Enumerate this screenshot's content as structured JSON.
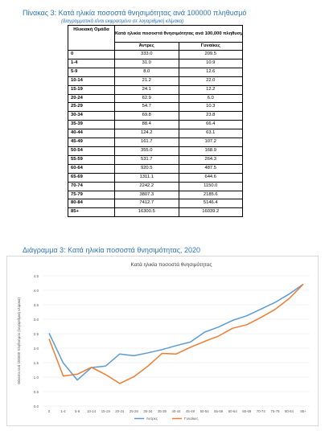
{
  "table": {
    "title": "Πίνακας 3: Κατά ηλικία ποσοστά θνησιμότητας ανά 100000 πληθυσμό",
    "note": "(διαγραμματικά είναι εκφρασμένο σε λογαριθμική κλίμακα)",
    "header_age": "Ηλικιακή Ομάδα",
    "header_group": "Κατά ηλικία ποσοστά θνησιμότητας ανά 100,000 πληθυσμό",
    "header_male": "Άντρες",
    "header_female": "Γυναίκες",
    "rows": [
      {
        "age": "0",
        "male": "333.0",
        "female": "209.5"
      },
      {
        "age": "1-4",
        "male": "31.0",
        "female": "10.9"
      },
      {
        "age": "5-9",
        "male": "8.0",
        "female": "12.6"
      },
      {
        "age": "10-14",
        "male": "21.2",
        "female": "22.0"
      },
      {
        "age": "15-19",
        "male": "24.1",
        "female": "12.2"
      },
      {
        "age": "20-24",
        "male": "62.9",
        "female": "6.0"
      },
      {
        "age": "25-29",
        "male": "54.7",
        "female": "10.3"
      },
      {
        "age": "30-34",
        "male": "69.8",
        "female": "23.8"
      },
      {
        "age": "35-39",
        "male": "88.4",
        "female": "66.4"
      },
      {
        "age": "40-44",
        "male": "124.2",
        "female": "63.1"
      },
      {
        "age": "45-49",
        "male": "161.7",
        "female": "107.2"
      },
      {
        "age": "50-54",
        "male": "355.0",
        "female": "168.9"
      },
      {
        "age": "55-59",
        "male": "531.7",
        "female": "264.3"
      },
      {
        "age": "60-64",
        "male": "920.5",
        "female": "487.5"
      },
      {
        "age": "65-69",
        "male": "1311.1",
        "female": "644.6"
      },
      {
        "age": "70-74",
        "male": "2242.2",
        "female": "1150.0"
      },
      {
        "age": "75-79",
        "male": "3807.3",
        "female": "2185.6"
      },
      {
        "age": "80-84",
        "male": "7412.7",
        "female": "5146.4"
      },
      {
        "age": "85+",
        "male": "16300.5",
        "female": "16039.2"
      }
    ]
  },
  "chart_section": {
    "heading": "Διάγραμμα 3: Κατά ηλικία ποσοστά θνησιμότητας, 2020"
  },
  "chart_data": {
    "type": "line",
    "title": "Κατά ηλικία ποσοστά θνησιμότητας",
    "ylabel": "Θάνατοι ανά 100000 πληθυσμού (λογαριθμική κλίμακα)",
    "xlabel": "",
    "ylim": [
      0,
      4.5
    ],
    "yticks": [
      "0.0",
      "0.5",
      "1.0",
      "1.5",
      "2.0",
      "2.5",
      "3.0",
      "3.5",
      "4.0",
      "4.5"
    ],
    "categories": [
      "0",
      "1-4",
      "5-9",
      "10-14",
      "15-19",
      "20-24",
      "25-29",
      "30-34",
      "35-39",
      "40-44",
      "45-49",
      "50-54",
      "55-59",
      "60-64",
      "65-69",
      "70-74",
      "75-79",
      "80-84",
      "85+"
    ],
    "grid": true,
    "legend_position": "bottom",
    "series": [
      {
        "name": "Άντρες",
        "color": "#5b9bd5",
        "values": [
          2.52,
          1.49,
          0.9,
          1.33,
          1.38,
          1.8,
          1.74,
          1.84,
          1.95,
          2.09,
          2.21,
          2.55,
          2.73,
          2.96,
          3.12,
          3.35,
          3.58,
          3.87,
          4.21
        ]
      },
      {
        "name": "Γυναίκες",
        "color": "#ed7d31",
        "values": [
          2.32,
          1.04,
          1.1,
          1.34,
          1.09,
          0.78,
          1.01,
          1.38,
          1.82,
          1.8,
          2.03,
          2.23,
          2.42,
          2.69,
          2.81,
          3.06,
          3.34,
          3.71,
          4.21
        ]
      }
    ]
  }
}
